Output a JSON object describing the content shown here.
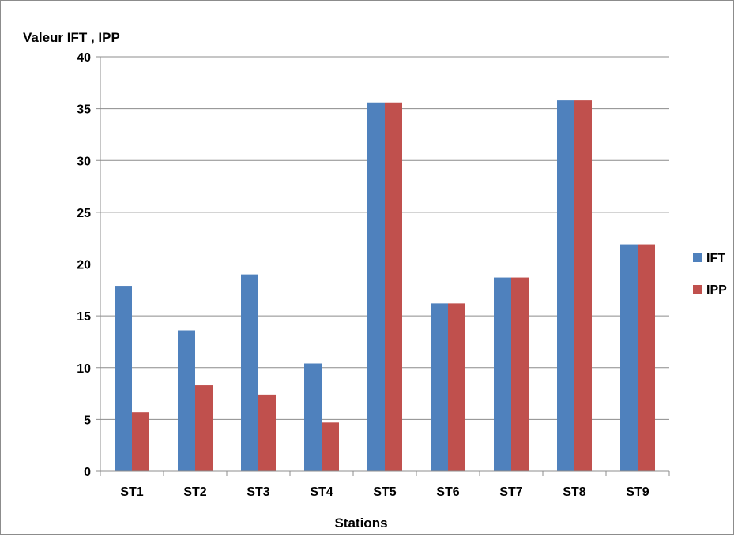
{
  "chart_data": {
    "type": "bar",
    "ylabel": "Valeur IFT , IPP",
    "xlabel": "Stations",
    "categories": [
      "ST1",
      "ST2",
      "ST3",
      "ST4",
      "ST5",
      "ST6",
      "ST7",
      "ST8",
      "ST9"
    ],
    "series": [
      {
        "name": "IFT",
        "color": "#4F81BD",
        "values": [
          17.9,
          13.6,
          19.0,
          10.4,
          35.6,
          16.2,
          18.7,
          35.8,
          21.9
        ]
      },
      {
        "name": "IPP",
        "color": "#C0504D",
        "values": [
          5.7,
          8.3,
          7.4,
          4.7,
          35.6,
          16.2,
          18.7,
          35.8,
          21.9
        ]
      }
    ],
    "ylim": [
      0,
      40
    ],
    "yticks": [
      0,
      5,
      10,
      15,
      20,
      25,
      30,
      35,
      40
    ],
    "grid": true,
    "legend": "right"
  }
}
